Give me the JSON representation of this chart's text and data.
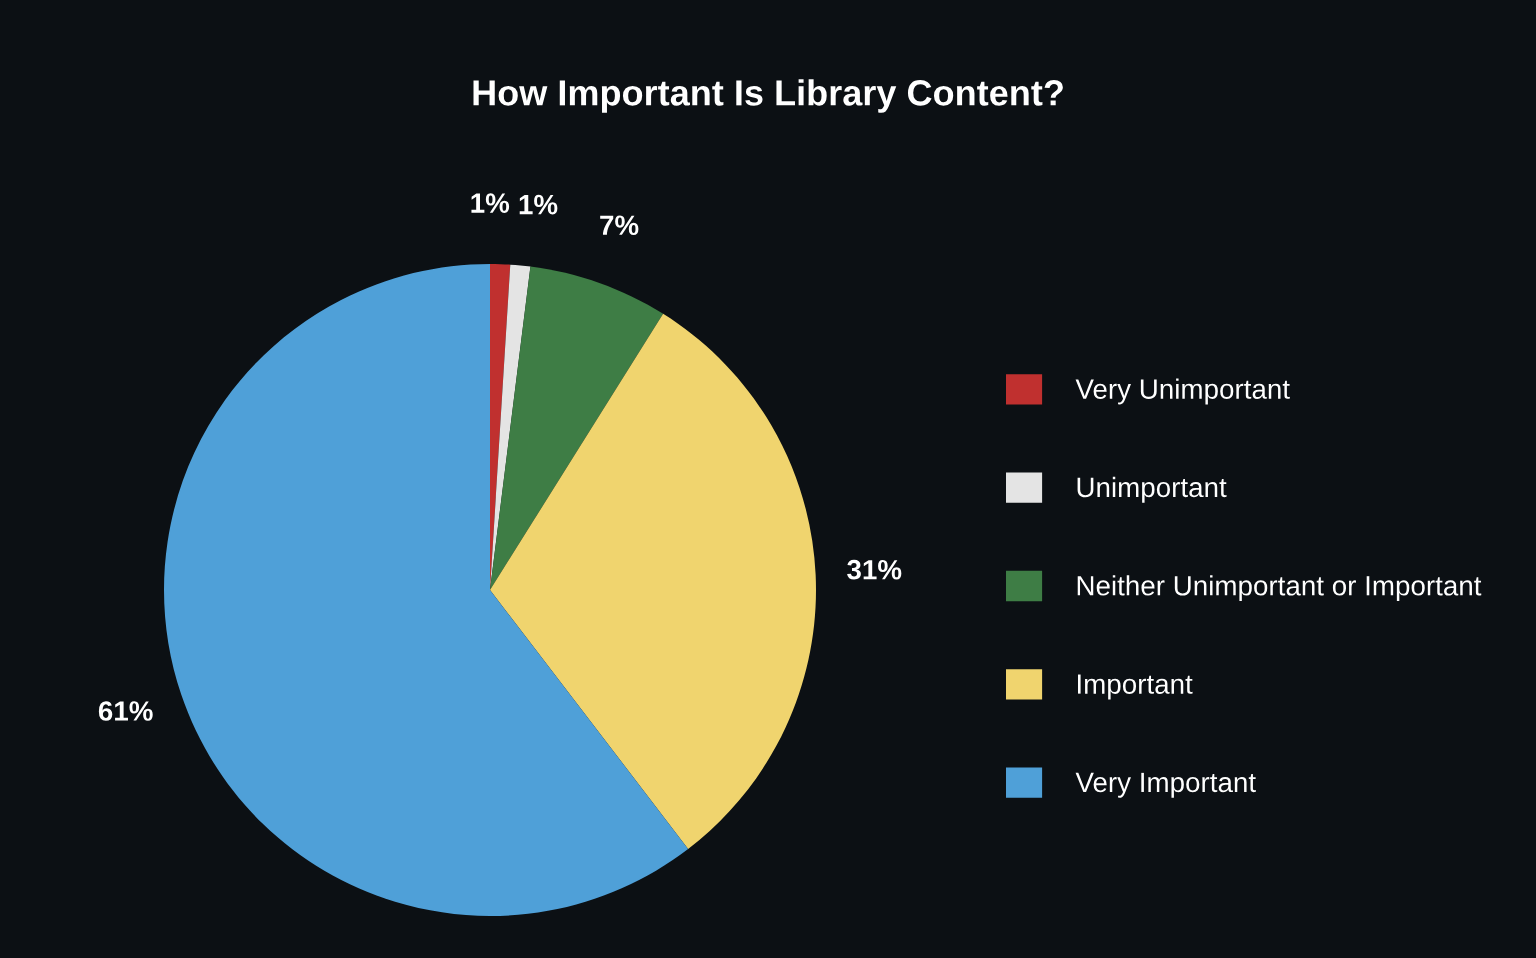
{
  "chart_data": {
    "type": "pie",
    "title": "How Important Is Library Content?",
    "categories": [
      "Very Unimportant",
      "Unimportant",
      "Neither Unimportant or Important",
      "Important",
      "Very Important"
    ],
    "values": [
      1,
      1,
      7,
      31,
      61
    ],
    "value_labels": [
      "1%",
      "1%",
      "7%",
      "31%",
      "61%"
    ],
    "colors": [
      "#c0302f",
      "#e4e4e4",
      "#3e7d45",
      "#f0d46e",
      "#4fa0d8"
    ],
    "legend": "right"
  }
}
